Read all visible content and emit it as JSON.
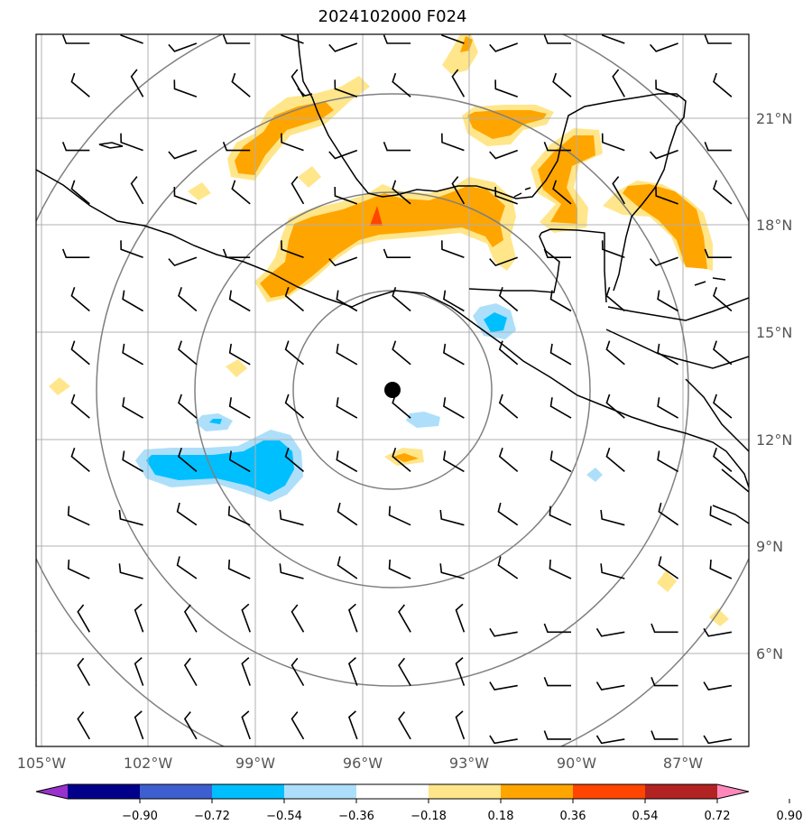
{
  "title": "2024102000 F024",
  "map": {
    "lon_range": [
      -105.1,
      -85.3
    ],
    "lat_range": [
      3.3,
      23.3
    ],
    "lon_ticks": [
      "105°W",
      "102°W",
      "99°W",
      "96°W",
      "93°W",
      "90°W",
      "87°W"
    ],
    "lat_ticks": [
      "6°N",
      "9°N",
      "12°N",
      "15°N",
      "18°N",
      "21°N"
    ],
    "center_marker": {
      "lon": -95.0,
      "lat": 13.4
    },
    "range_rings_deg": [
      2.75,
      5.5,
      8.25,
      11.0
    ],
    "grid": true
  },
  "colorbar": {
    "ticks": [
      "−0.90",
      "−0.72",
      "−0.54",
      "−0.36",
      "−0.18",
      "0.18",
      "0.36",
      "0.54",
      "0.72",
      "0.90"
    ],
    "colors": [
      "#9932CC",
      "#00008B",
      "#3E5FCF",
      "#00BFFF",
      "#ADDFFA",
      "#FFFFFF",
      "#FFE68A",
      "#FFA500",
      "#FF4500",
      "#B22222",
      "#FF88BB"
    ]
  }
}
